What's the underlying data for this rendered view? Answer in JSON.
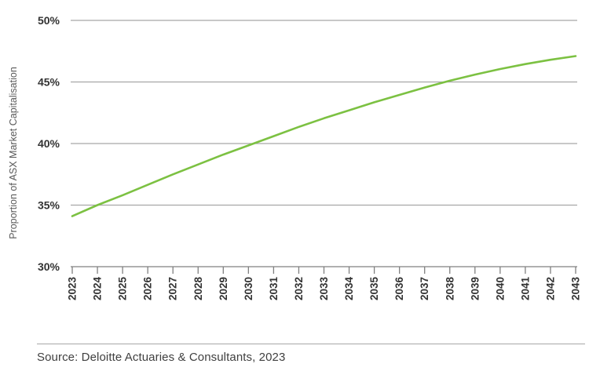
{
  "source_note": "Source: Deloitte Actuaries & Consultants, 2023",
  "chart_data": {
    "type": "line",
    "title": "",
    "xlabel": "",
    "ylabel": "Proportion of ASX Market Capitalisation",
    "x": [
      2023,
      2024,
      2025,
      2026,
      2027,
      2028,
      2029,
      2030,
      2031,
      2032,
      2033,
      2034,
      2035,
      2036,
      2037,
      2038,
      2039,
      2040,
      2041,
      2042,
      2043
    ],
    "series": [
      {
        "name": "Proportion of ASX Market Capitalisation",
        "color": "#7CC142",
        "values": [
          34.1,
          35.0,
          35.8,
          36.65,
          37.5,
          38.3,
          39.1,
          39.85,
          40.6,
          41.35,
          42.05,
          42.7,
          43.35,
          43.95,
          44.55,
          45.1,
          45.6,
          46.05,
          46.45,
          46.8,
          47.1
        ]
      }
    ],
    "ylim": [
      30,
      50
    ],
    "yticks": [
      30,
      35,
      40,
      45,
      50
    ],
    "ytick_suffix": "%",
    "grid": true,
    "legend": false
  },
  "colors": {
    "line": "#7CC142",
    "gridline": "#A6A6A6",
    "axis": "#808080",
    "tick_label": "#333333",
    "axis_title": "#595959",
    "source_text": "#404040",
    "divider": "#A6A6A6"
  }
}
